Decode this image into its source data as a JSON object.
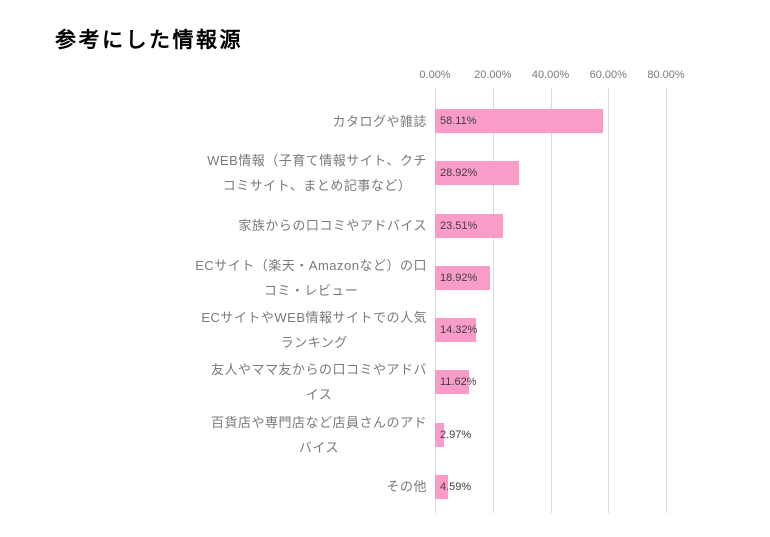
{
  "page": {
    "background": "#ffffff"
  },
  "chart_data": {
    "type": "bar",
    "orientation": "horizontal",
    "title": "参考にした情報源",
    "categories": [
      "カタログや雑誌",
      "WEB情報（子育て情報サイト、クチ\nコミサイト、まとめ記事など）",
      "家族からの口コミやアドバイス",
      "ECサイト（楽天・Amazonなど）の口\nコミ・レビュー",
      "ECサイトやWEB情報サイトでの人気\nランキング",
      "友人やママ友からの口コミやアドバ\nイス",
      "百貨店や専門店など店員さんのアド\nバイス",
      "その他"
    ],
    "values": [
      58.11,
      28.92,
      23.51,
      18.92,
      14.32,
      11.62,
      2.97,
      4.59
    ],
    "data_labels": [
      "58.11%",
      "28.92%",
      "23.51%",
      "18.92%",
      "14.32%",
      "11.62%",
      "2.97%",
      "4.59%"
    ],
    "x_axis": {
      "position": "top",
      "tick_labels": [
        "0.00%",
        "20.00%",
        "40.00%",
        "60.00%",
        "80.00%"
      ],
      "tick_values": [
        0,
        20,
        40,
        60,
        80
      ]
    },
    "xlim": [
      0,
      90
    ],
    "grid": true,
    "legend": "none",
    "colors": {
      "bar_fill": "#F99CC9",
      "gridline": "#D9D9D9",
      "axis_label": "#7A7A7A",
      "category_label": "#7A7A7A",
      "data_label": "#404040",
      "title": "#000000"
    }
  }
}
